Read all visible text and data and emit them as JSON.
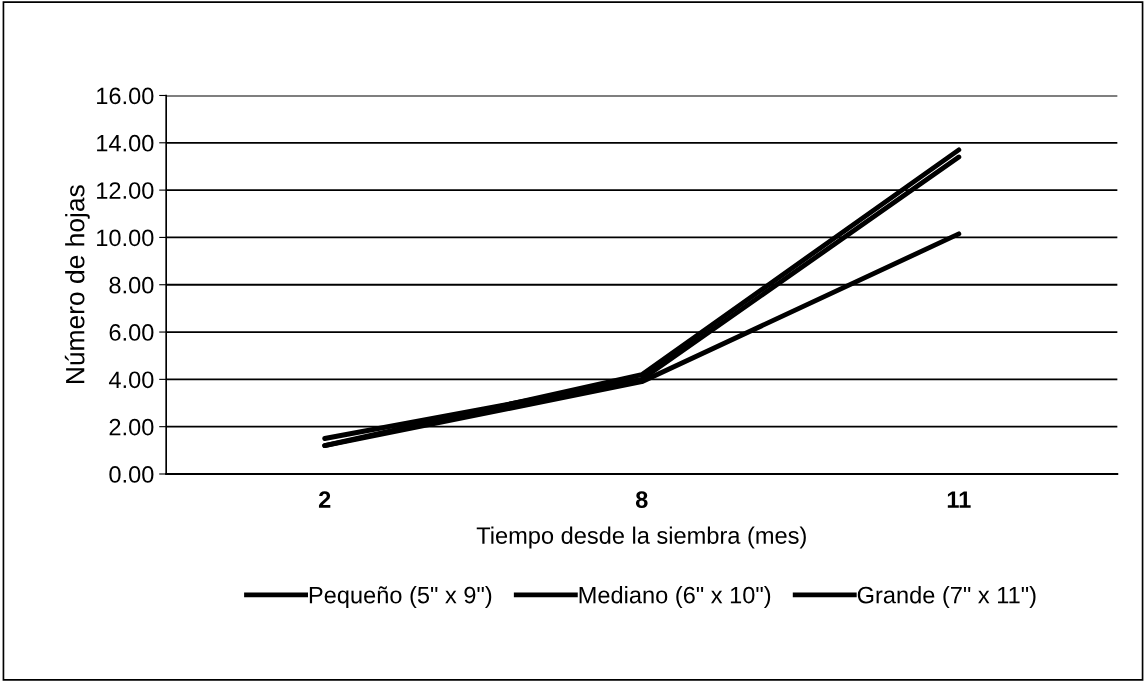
{
  "chart_data": {
    "type": "line",
    "xlabel": "Tiempo desde la siembra (mes)",
    "ylabel": "Número de hojas",
    "categories": [
      "2",
      "8",
      "11"
    ],
    "series": [
      {
        "name": "Pequeño (5\" x 9\")",
        "color": "#000000",
        "values": [
          1.2,
          3.9,
          10.15
        ]
      },
      {
        "name": "Mediano (6\" x 10\")",
        "color": "#000000",
        "values": [
          1.5,
          4.0,
          13.4
        ]
      },
      {
        "name": "Grande (7\" x 11\")",
        "color": "#000000",
        "values": [
          1.2,
          4.2,
          13.7
        ]
      }
    ],
    "ylim": [
      0,
      16
    ],
    "yticks": [
      {
        "value": 0,
        "label": "0.00"
      },
      {
        "value": 2,
        "label": "2.00"
      },
      {
        "value": 4,
        "label": "4.00"
      },
      {
        "value": 6,
        "label": "6.00"
      },
      {
        "value": 8,
        "label": "8.00"
      },
      {
        "value": 10,
        "label": "10.00"
      },
      {
        "value": 12,
        "label": "12.00"
      },
      {
        "value": 14,
        "label": "14.00"
      },
      {
        "value": 16,
        "label": "16.00"
      }
    ],
    "grid": "y",
    "legend": "bottom",
    "marker": "none",
    "line_style": "solid"
  }
}
